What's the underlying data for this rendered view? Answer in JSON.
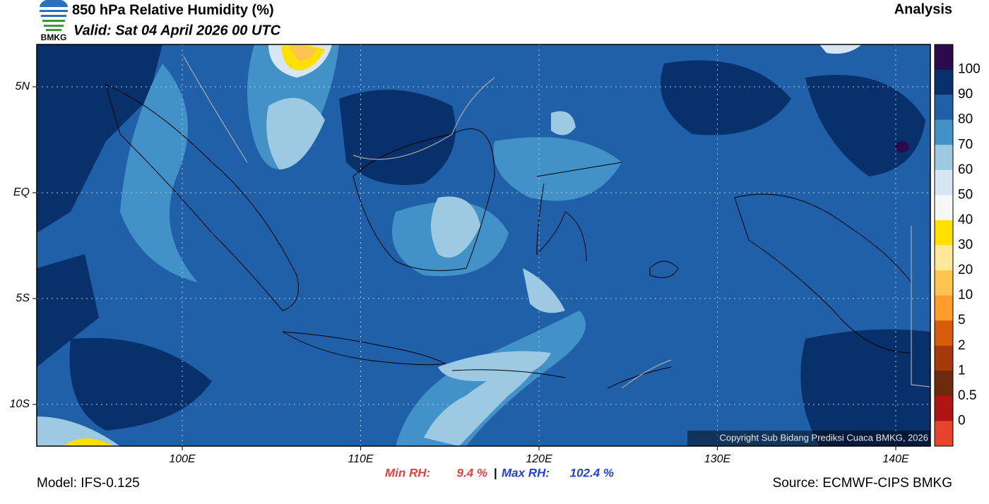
{
  "header": {
    "title": "850 hPa Relative Humidity (%)",
    "valid": "Valid: Sat 04 April 2026 00 UTC",
    "right_label": "Analysis",
    "logo_text": "BMKG"
  },
  "map": {
    "xlim": [
      91.84,
      141.94
    ],
    "ylim": [
      -11.97,
      7
    ],
    "xticks": [
      {
        "value": 100,
        "label": "100E"
      },
      {
        "value": 110,
        "label": "110E"
      },
      {
        "value": 120,
        "label": "120E"
      },
      {
        "value": 130,
        "label": "130E"
      },
      {
        "value": 140,
        "label": "140E"
      }
    ],
    "yticks": [
      {
        "value": 5,
        "label": "5N"
      },
      {
        "value": 0,
        "label": "EQ"
      },
      {
        "value": -5,
        "label": "5S"
      },
      {
        "value": -10,
        "label": "10S"
      }
    ],
    "grid": true
  },
  "legend": {
    "colors": [
      "#2b0a4d",
      "#08306b",
      "#1f60a8",
      "#4291c7",
      "#9dc9e2",
      "#d6e7f3",
      "#f7f7f7",
      "#ffe000",
      "#ffe89c",
      "#ffc350",
      "#ff9d2c",
      "#d85b0c",
      "#a5390a",
      "#6d2a0d",
      "#b01414",
      "#e8432c"
    ],
    "labels": [
      100,
      90,
      80,
      70,
      60,
      50,
      40,
      30,
      20,
      10,
      5,
      2,
      1,
      0.5,
      0
    ]
  },
  "footer": {
    "min_rh_label": "Min RH:",
    "min_rh": "9.4 %",
    "separator": "|",
    "max_rh_label": "Max RH:",
    "max_rh": "102.4 %",
    "model": "Model: IFS-0.125",
    "source": "Source: ECMWF-CIPS BMKG"
  },
  "copyright": "Copyright Sub Bidang Prediksi Cuaca BMKG, 2026"
}
